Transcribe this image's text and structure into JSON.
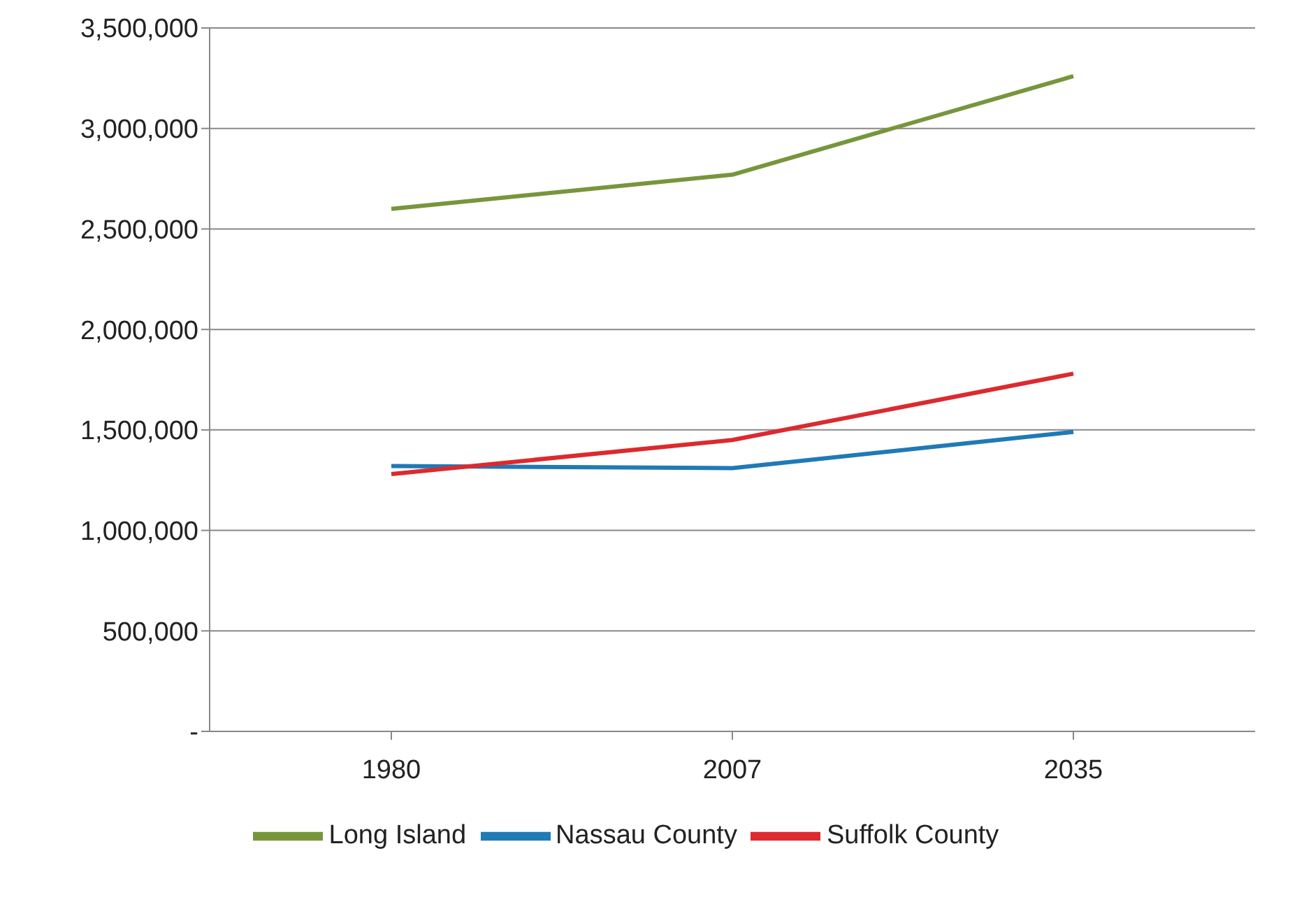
{
  "chart_data": {
    "type": "line",
    "categories": [
      "1980",
      "2007",
      "2035"
    ],
    "series": [
      {
        "name": "Long Island",
        "color": "#77963c",
        "values": [
          2600000,
          2770000,
          3260000
        ]
      },
      {
        "name": "Nassau County",
        "color": "#1f7ab5",
        "values": [
          1320000,
          1310000,
          1490000
        ]
      },
      {
        "name": "Suffolk County",
        "color": "#dc2a2e",
        "values": [
          1280000,
          1450000,
          1780000
        ]
      }
    ],
    "ylim": [
      0,
      3500000
    ],
    "yticks": [
      {
        "value": 0,
        "label": "-"
      },
      {
        "value": 500000,
        "label": "500,000"
      },
      {
        "value": 1000000,
        "label": "1,000,000"
      },
      {
        "value": 1500000,
        "label": "1,500,000"
      },
      {
        "value": 2000000,
        "label": "2,000,000"
      },
      {
        "value": 2500000,
        "label": "2,500,000"
      },
      {
        "value": 3000000,
        "label": "3,000,000"
      },
      {
        "value": 3500000,
        "label": "3,500,000"
      }
    ],
    "grid": "y",
    "legend": "bottom",
    "marker": "none",
    "line_style": "solid"
  }
}
